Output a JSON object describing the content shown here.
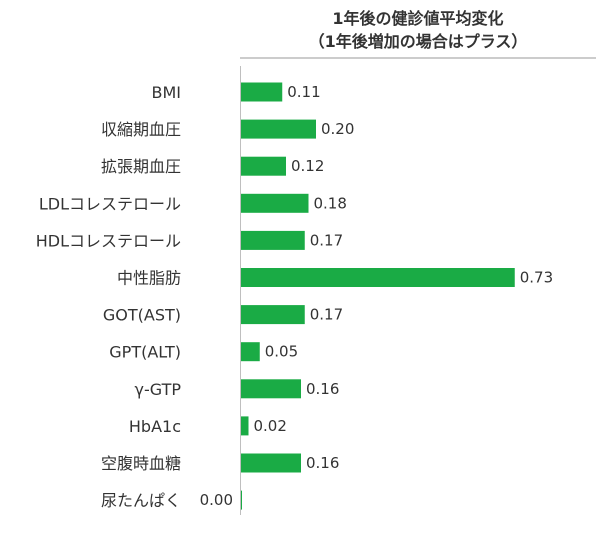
{
  "chart_data": {
    "type": "bar",
    "orientation": "horizontal",
    "title_lines": [
      "1年後の健診値平均変化",
      "（1年後増加の場合はプラス）"
    ],
    "categories": [
      "BMI",
      "収縮期血圧",
      "拡張期血圧",
      "LDLコレステロール",
      "HDLコレステロール",
      "中性脂肪",
      "GOT(AST)",
      "GPT(ALT)",
      "γ-GTP",
      "HbA1c",
      "空腹時血糖",
      "尿たんぱく"
    ],
    "values": [
      0.11,
      0.2,
      0.12,
      0.18,
      0.17,
      0.73,
      0.17,
      0.05,
      0.16,
      0.02,
      0.16,
      0.0
    ],
    "value_labels": [
      "0.11",
      "0.20",
      "0.12",
      "0.18",
      "0.17",
      "0.73",
      "0.17",
      "0.05",
      "0.16",
      "0.02",
      "0.16",
      "0.00"
    ],
    "xlim": [
      0,
      0.8
    ],
    "grid": false,
    "legend": "none",
    "bar_color": "#1aab45",
    "axis_color": "#bfbfbf"
  }
}
